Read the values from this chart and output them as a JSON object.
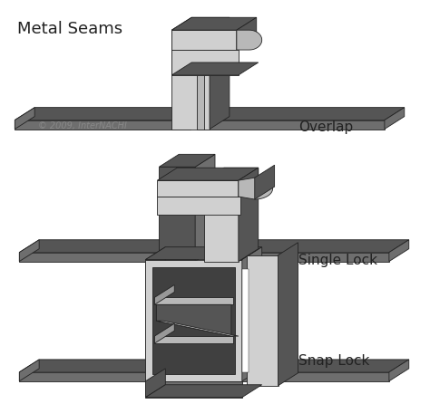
{
  "title": "Metal Seams",
  "copyright": "© 2009, InterNACHI",
  "labels": [
    "Overlap",
    "Single Lock",
    "Snap Lock"
  ],
  "background_color": "#ffffff",
  "title_fontsize": 13,
  "label_fontsize": 11,
  "C_darkest": "#404040",
  "C_dark": "#555555",
  "C_mid": "#6e6e6e",
  "C_light": "#989898",
  "C_xlight": "#b8b8b8",
  "C_silver": "#d0d0d0",
  "C_white": "#e8e8e8",
  "edge_color": "#222222",
  "copyright_color": "#888888"
}
